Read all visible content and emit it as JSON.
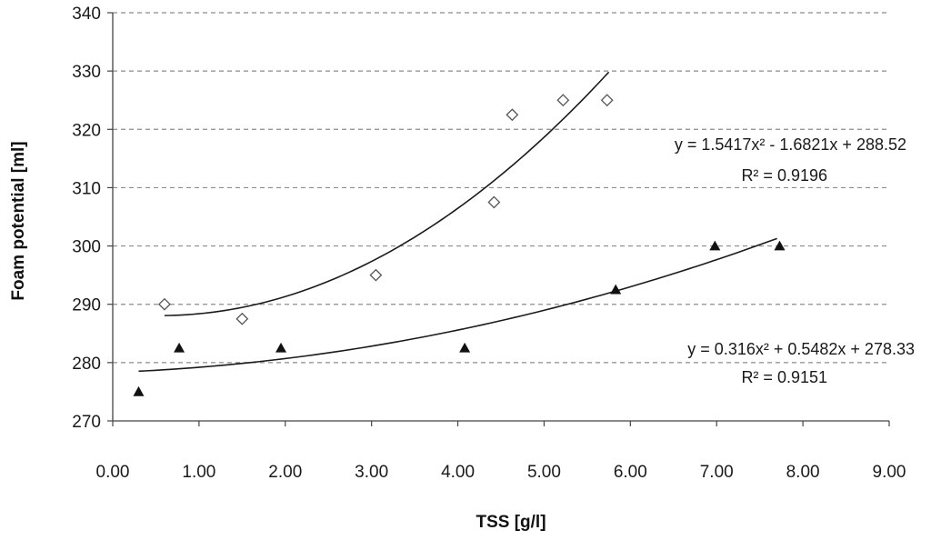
{
  "chart_data": {
    "type": "scatter",
    "title": "",
    "xlabel": "TSS [g/l]",
    "ylabel": "Foam potential [ml]",
    "xlim": [
      0,
      9
    ],
    "ylim": [
      270,
      340
    ],
    "xticks": [
      0,
      1,
      2,
      3,
      4,
      5,
      6,
      7,
      8,
      9
    ],
    "xtick_labels": [
      "0.00",
      "1.00",
      "2.00",
      "3.00",
      "4.00",
      "5.00",
      "6.00",
      "7.00",
      "8.00",
      "9.00"
    ],
    "yticks": [
      270,
      280,
      290,
      300,
      310,
      320,
      330,
      340
    ],
    "ytick_labels": [
      "270",
      "280",
      "290",
      "300",
      "310",
      "320",
      "330",
      "340"
    ],
    "grid": "horizontal-dashed",
    "series": [
      {
        "name": "diamonds",
        "marker": "diamond-open",
        "color": "#555555",
        "points": [
          [
            0.6,
            290
          ],
          [
            1.5,
            287.5
          ],
          [
            3.05,
            295
          ],
          [
            4.42,
            307.5
          ],
          [
            4.63,
            322.5
          ],
          [
            5.22,
            325
          ],
          [
            5.73,
            325
          ]
        ],
        "trend": {
          "type": "poly2",
          "coeffs": [
            1.5417,
            -1.6821,
            288.52
          ],
          "x_range": [
            0.6,
            5.75
          ],
          "equation": "y = 1.5417x² - 1.6821x + 288.52",
          "r2": "R² = 0.9196"
        }
      },
      {
        "name": "triangles",
        "marker": "triangle-filled",
        "color": "#111111",
        "points": [
          [
            0.3,
            275
          ],
          [
            0.77,
            282.5
          ],
          [
            1.95,
            282.5
          ],
          [
            4.08,
            282.5
          ],
          [
            5.83,
            292.5
          ],
          [
            6.98,
            300
          ],
          [
            7.73,
            300
          ]
        ],
        "trend": {
          "type": "poly2",
          "coeffs": [
            0.316,
            0.5482,
            278.33
          ],
          "x_range": [
            0.3,
            7.7
          ],
          "equation": "y = 0.316x² + 0.5482x + 278.33",
          "r2": "R² = 0.9151"
        }
      }
    ]
  }
}
